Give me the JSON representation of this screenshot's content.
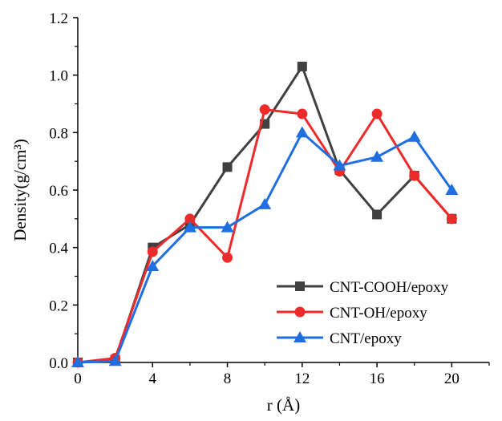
{
  "chart_data": {
    "type": "line",
    "xlabel": "r (Å)",
    "ylabel": "Density(g/cm³)",
    "xlim": [
      0,
      22
    ],
    "ylim": [
      0,
      1.2
    ],
    "xticks": [
      "0",
      "4",
      "8",
      "12",
      "16",
      "20"
    ],
    "yticks": [
      "0.0",
      "0.2",
      "0.4",
      "0.6",
      "0.8",
      "1.0",
      "1.2"
    ],
    "grid": false,
    "legend_position": "bottom-right",
    "series": [
      {
        "name": "CNT-COOH/epoxy",
        "color": "#404040",
        "marker": "square",
        "x": [
          0,
          2,
          4,
          6,
          8,
          10,
          12,
          14,
          16,
          18,
          20
        ],
        "y": [
          0.0,
          0.01,
          0.4,
          0.48,
          0.68,
          0.83,
          1.03,
          0.67,
          0.515,
          0.65,
          0.5
        ]
      },
      {
        "name": "CNT-OH/epoxy",
        "color": "#ee2b2b",
        "marker": "circle",
        "x": [
          0,
          2,
          4,
          6,
          8,
          10,
          12,
          14,
          16,
          18,
          20
        ],
        "y": [
          0.0,
          0.015,
          0.385,
          0.5,
          0.365,
          0.88,
          0.865,
          0.665,
          0.865,
          0.65,
          0.5
        ]
      },
      {
        "name": "CNT/epoxy",
        "color": "#1f6fe0",
        "marker": "triangle",
        "x": [
          0,
          2,
          4,
          6,
          8,
          10,
          12,
          14,
          16,
          18,
          20
        ],
        "y": [
          0.0,
          0.005,
          0.335,
          0.47,
          0.47,
          0.55,
          0.8,
          0.685,
          0.715,
          0.785,
          0.6
        ]
      }
    ]
  }
}
